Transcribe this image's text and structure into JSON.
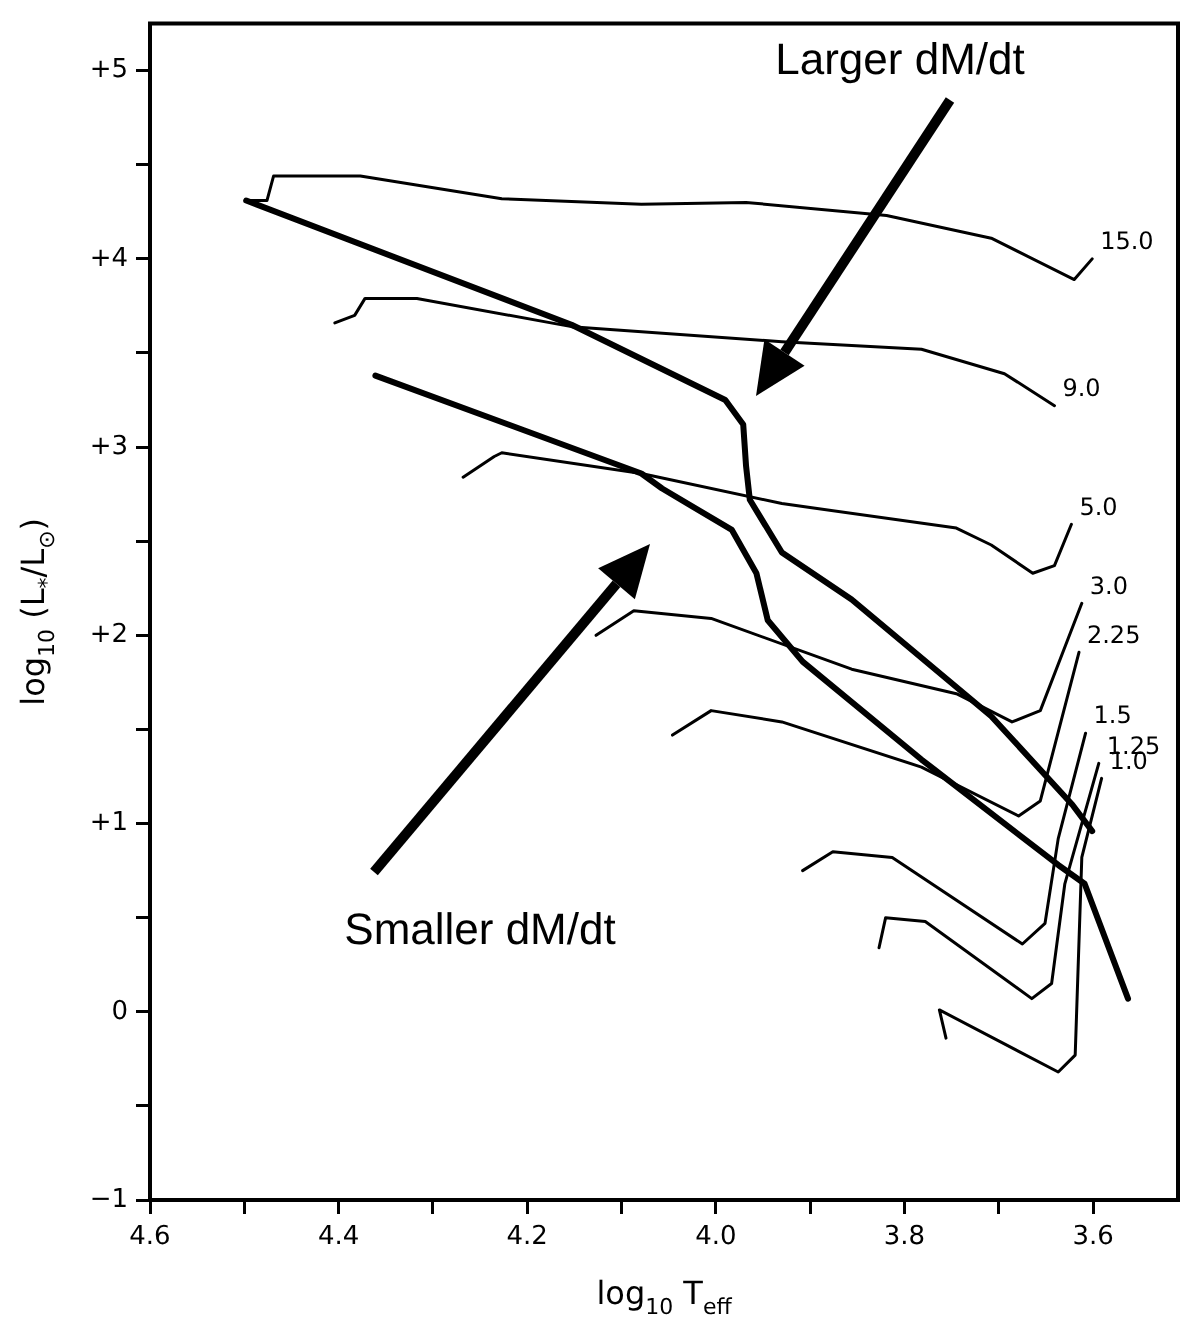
{
  "chart_data": {
    "type": "line",
    "xlabel": "log$_{10}$ T$_{eff}$",
    "ylabel": "log$_{10}$ (L$_{*}$/L$_{⊙}$)",
    "xlim": [
      4.6,
      3.51
    ],
    "ylim": [
      -1,
      5.25
    ],
    "xticks": [
      4.6,
      {
        "value": 4.5,
        "label": null
      },
      4.4,
      {
        "value": 4.3,
        "label": null
      },
      4.2,
      {
        "value": 4.1,
        "label": null
      },
      {
        "value": 4,
        "label": "4.0"
      },
      {
        "value": 3.9,
        "label": null
      },
      3.8,
      {
        "value": 3.7,
        "label": null
      },
      3.6
    ],
    "yticks": [
      {
        "value": -1,
        "label": "−1"
      },
      {
        "value": -0.5,
        "label": null
      },
      0,
      {
        "value": 0.5,
        "label": null
      },
      {
        "value": 1,
        "label": "+1"
      },
      {
        "value": 1.5,
        "label": null
      },
      {
        "value": 2,
        "label": "+2"
      },
      {
        "value": 2.5,
        "label": null
      },
      {
        "value": 3,
        "label": "+3"
      },
      {
        "value": 3.5,
        "label": null
      },
      {
        "value": 4,
        "label": "+4"
      },
      {
        "value": 4.5,
        "label": null
      },
      {
        "value": 5,
        "label": "+5"
      }
    ],
    "grid": false,
    "legend": false,
    "marker": "none",
    "line_style": "solid",
    "series": [
      {
        "name": "15.0",
        "color": "#000000",
        "x": [
          4.498,
          4.476,
          4.469,
          4.377,
          4.227,
          4.079,
          3.968,
          3.819,
          3.708,
          3.62,
          3.601
        ],
        "values": [
          4.31,
          4.31,
          4.44,
          4.44,
          4.32,
          4.29,
          4.3,
          4.23,
          4.11,
          3.89,
          4.0
        ]
      },
      {
        "name": "9.0",
        "color": "#000000",
        "x": [
          4.404,
          4.383,
          4.372,
          4.317,
          4.153,
          3.93,
          3.782,
          3.694,
          3.641
        ],
        "values": [
          3.66,
          3.7,
          3.79,
          3.79,
          3.64,
          3.56,
          3.52,
          3.39,
          3.22
        ]
      },
      {
        "name": "5.0",
        "color": "#000000",
        "x": [
          4.268,
          4.235,
          4.227,
          4.079,
          3.93,
          3.745,
          3.708,
          3.664,
          3.641,
          3.623
        ],
        "values": [
          2.84,
          2.95,
          2.97,
          2.86,
          2.7,
          2.57,
          2.48,
          2.33,
          2.37,
          2.59
        ]
      },
      {
        "name": "3.0",
        "color": "#000000",
        "x": [
          4.127,
          4.087,
          4.005,
          3.856,
          3.745,
          3.686,
          3.656,
          3.612
        ],
        "values": [
          2.0,
          2.13,
          2.09,
          1.82,
          1.69,
          1.54,
          1.6,
          2.17
        ]
      },
      {
        "name": "2.25",
        "color": "#000000",
        "x": [
          4.046,
          4.005,
          3.93,
          3.782,
          3.679,
          3.656,
          3.615
        ],
        "values": [
          1.47,
          1.6,
          1.54,
          1.3,
          1.04,
          1.12,
          1.91
        ]
      },
      {
        "name": "1.5",
        "color": "#000000",
        "x": [
          3.908,
          3.876,
          3.813,
          3.675,
          3.651,
          3.637,
          3.608
        ],
        "values": [
          0.75,
          0.85,
          0.82,
          0.36,
          0.47,
          0.92,
          1.48
        ]
      },
      {
        "name": "1.25",
        "color": "#000000",
        "x": [
          3.827,
          3.82,
          3.778,
          3.665,
          3.644,
          3.63,
          3.594
        ],
        "values": [
          0.34,
          0.5,
          0.48,
          0.07,
          0.15,
          0.68,
          1.32
        ]
      },
      {
        "name": "1.0",
        "color": "#000000",
        "x": [
          3.756,
          3.763,
          3.637,
          3.619,
          3.612,
          3.591
        ],
        "values": [
          -0.14,
          0.01,
          -0.32,
          -0.23,
          0.82,
          1.24
        ]
      },
      {
        "color": "#000000",
        "x": [
          4.498,
          4.153,
          3.99,
          3.971,
          3.968,
          3.964,
          3.93,
          3.856,
          3.708,
          3.622,
          3.601
        ],
        "values": [
          4.31,
          3.65,
          3.25,
          3.12,
          2.9,
          2.72,
          2.44,
          2.19,
          1.57,
          1.1,
          0.96
        ]
      },
      {
        "color": "#000000",
        "x": [
          4.361,
          4.079,
          4.057,
          3.983,
          3.957,
          3.945,
          3.908,
          3.782,
          3.637,
          3.609,
          3.563
        ],
        "values": [
          3.38,
          2.86,
          2.78,
          2.56,
          2.33,
          2.08,
          1.86,
          1.34,
          0.78,
          0.68,
          0.07
        ]
      }
    ],
    "annotations": [
      "Larger dM/dt",
      "Smaller dM/dt"
    ]
  }
}
